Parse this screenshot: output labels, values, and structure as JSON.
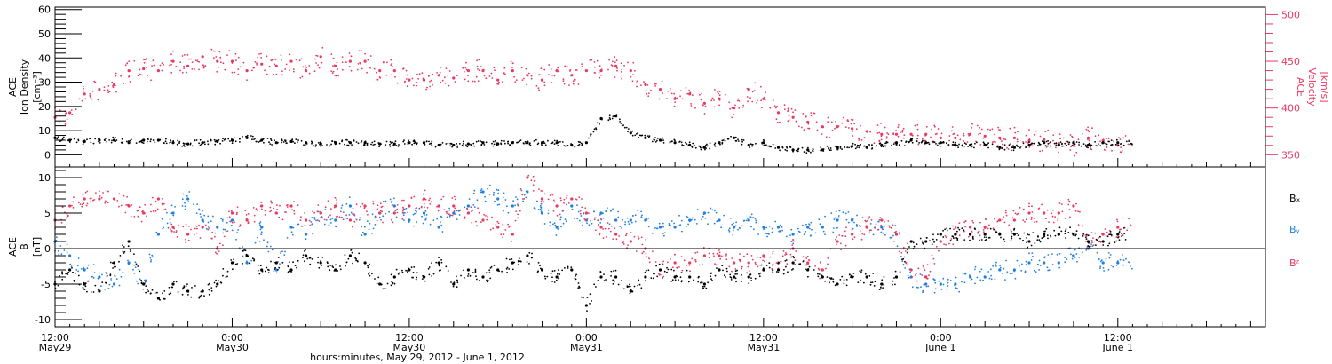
{
  "chart_data": [
    {
      "type": "scatter",
      "panel": "top",
      "ylabel_left_lines": [
        "ACE",
        "Ion Density",
        "[cm⁻³]"
      ],
      "ylabel_right_lines": [
        "ACE",
        "Velocity",
        "[km/s]"
      ],
      "y_left": {
        "min": -5,
        "max": 61,
        "ticks": [
          0,
          10,
          20,
          30,
          40,
          50,
          60
        ]
      },
      "y_right": {
        "min": 337,
        "max": 508,
        "ticks": [
          350,
          400,
          450,
          500
        ]
      },
      "x_hours": [
        0,
        1,
        2,
        3,
        4,
        5,
        6,
        7,
        8,
        9,
        10,
        11,
        12,
        13,
        14,
        15,
        16,
        17,
        18,
        19,
        20,
        21,
        22,
        23,
        24,
        25,
        26,
        27,
        28,
        29,
        30,
        31,
        32,
        33,
        34,
        35,
        36,
        37,
        38,
        39,
        40,
        41,
        42,
        43,
        44,
        45,
        46,
        47,
        48,
        49,
        50,
        51,
        52,
        53,
        54,
        55,
        56,
        57,
        58,
        59,
        60,
        61,
        62,
        63,
        64,
        65,
        66,
        67,
        68,
        69,
        70,
        71,
        72
      ],
      "series": [
        {
          "name": "Ion Density",
          "axis": "left",
          "color": "#000000",
          "values": [
            7,
            6,
            5.5,
            6,
            6,
            5,
            6,
            6,
            5,
            4.5,
            5,
            5.5,
            6,
            7,
            6,
            5,
            5.5,
            5,
            4.5,
            5,
            5,
            5,
            4.5,
            4.5,
            5,
            5,
            4,
            4,
            4.5,
            5,
            4.5,
            5,
            5,
            5,
            5,
            4,
            5,
            15,
            16,
            9,
            7,
            6,
            5,
            4,
            3,
            5,
            7,
            4,
            5,
            3,
            2,
            2,
            2,
            3,
            3.5,
            3,
            4,
            5,
            6,
            5,
            5,
            4,
            4,
            4,
            3,
            3,
            4,
            5,
            4,
            5,
            4,
            5,
            5
          ]
        },
        {
          "name": "Velocity",
          "axis": "right",
          "color": "#e8395f",
          "values": [
            390,
            395,
            415,
            420,
            425,
            440,
            442,
            440,
            450,
            445,
            455,
            450,
            450,
            440,
            447,
            445,
            450,
            440,
            455,
            445,
            450,
            450,
            440,
            440,
            430,
            430,
            435,
            432,
            440,
            440,
            430,
            440,
            435,
            430,
            440,
            435,
            440,
            440,
            445,
            440,
            425,
            420,
            410,
            415,
            405,
            410,
            400,
            420,
            410,
            395,
            390,
            385,
            380,
            380,
            378,
            375,
            372,
            372,
            372,
            372,
            368,
            368,
            372,
            370,
            368,
            368,
            365,
            366,
            362,
            360,
            368,
            365,
            360
          ]
        }
      ]
    },
    {
      "type": "scatter",
      "panel": "bottom",
      "ylabel_left_lines": [
        "ACE",
        "B",
        "[nT]"
      ],
      "y": {
        "min": -11,
        "max": 11.5,
        "ticks": [
          -10,
          -5,
          0,
          5,
          10
        ]
      },
      "zero_line": true,
      "x_hours": [
        0,
        1,
        2,
        3,
        4,
        5,
        6,
        7,
        8,
        9,
        10,
        11,
        12,
        13,
        14,
        15,
        16,
        17,
        18,
        19,
        20,
        21,
        22,
        23,
        24,
        25,
        26,
        27,
        28,
        29,
        30,
        31,
        32,
        33,
        34,
        35,
        36,
        37,
        38,
        39,
        40,
        41,
        42,
        43,
        44,
        45,
        46,
        47,
        48,
        49,
        50,
        51,
        52,
        53,
        54,
        55,
        56,
        57,
        58,
        59,
        60,
        61,
        62,
        63,
        64,
        65,
        66,
        67,
        68,
        69,
        70,
        71,
        72
      ],
      "series": [
        {
          "name": "Bₓ",
          "color": "#000000",
          "values": [
            -5,
            -3,
            -5,
            -6,
            -2,
            1,
            -5,
            -7,
            -5,
            -6,
            -6,
            -5,
            -2,
            -1,
            -3,
            -2,
            -3,
            -1,
            -2,
            -3,
            -1,
            -2,
            -5,
            -4,
            -3,
            -4,
            -2,
            -5,
            -3,
            -4,
            -3,
            -2,
            -1,
            -3,
            -4,
            -3,
            -8,
            -4,
            -4,
            -6,
            -4,
            -3,
            -4,
            -4,
            -5,
            -3,
            -4,
            -4,
            -3,
            -3,
            -2,
            -3,
            -4,
            -5,
            -4,
            -4,
            -5,
            -4,
            1,
            1,
            2,
            2,
            2,
            2,
            2,
            2,
            1,
            2,
            2,
            2,
            1,
            1,
            2
          ]
        },
        {
          "name": "Bᵧ",
          "color": "#1f7fe0",
          "values": [
            1,
            -1,
            -3,
            -4,
            -5,
            -2,
            -5,
            2,
            5,
            7,
            4,
            3,
            4,
            -2,
            3,
            -3,
            3,
            2,
            5,
            4,
            6,
            2,
            5,
            6,
            4,
            5,
            3,
            5,
            6,
            8,
            7,
            6,
            8,
            5,
            3,
            6,
            4,
            5,
            4,
            4,
            4,
            3,
            3,
            4,
            5,
            4,
            3,
            4,
            3,
            3,
            2,
            3,
            3,
            4,
            4,
            3,
            3,
            2,
            -4,
            -5,
            -5,
            -5,
            -4,
            -4,
            -3,
            -3,
            -2,
            -2,
            -2,
            -1,
            0,
            -2,
            -2
          ]
        },
        {
          "name": "Bᶻ",
          "color": "#e8395f",
          "values": [
            4,
            6,
            7,
            7,
            7,
            6,
            5,
            7,
            3,
            2,
            3,
            0,
            5,
            4,
            6,
            5,
            6,
            4,
            5,
            6,
            4,
            6,
            5,
            5,
            6,
            7,
            6,
            6,
            5,
            4,
            3,
            2,
            10,
            7,
            6,
            7,
            5,
            3,
            2,
            1,
            0,
            -3,
            -2,
            -2,
            -1,
            -1,
            -2,
            -2,
            -1,
            -2,
            0,
            -2,
            -3,
            1,
            2,
            3,
            4,
            2,
            -3,
            -4,
            1,
            2,
            3,
            3,
            4,
            4,
            5,
            5,
            5,
            6,
            1,
            2,
            3
          ]
        }
      ],
      "legend_placement": "right"
    }
  ],
  "x_axis": {
    "tick_labels_time": [
      "12:00",
      "0:00",
      "12:00",
      "0:00",
      "12:00",
      "0:00",
      "12:00"
    ],
    "tick_labels_date": [
      "May29",
      "May30",
      "May30",
      "May31",
      "May31",
      "June 1",
      "June 1"
    ],
    "tick_hours": [
      0,
      12,
      24,
      36,
      48,
      60,
      72
    ],
    "range_hours": [
      0,
      82
    ],
    "xlabel": "hours:minutes, May 29, 2012 - June  1, 2012"
  },
  "legend": [
    "Bₓ",
    "Bᵧ",
    "Bᶻ"
  ]
}
